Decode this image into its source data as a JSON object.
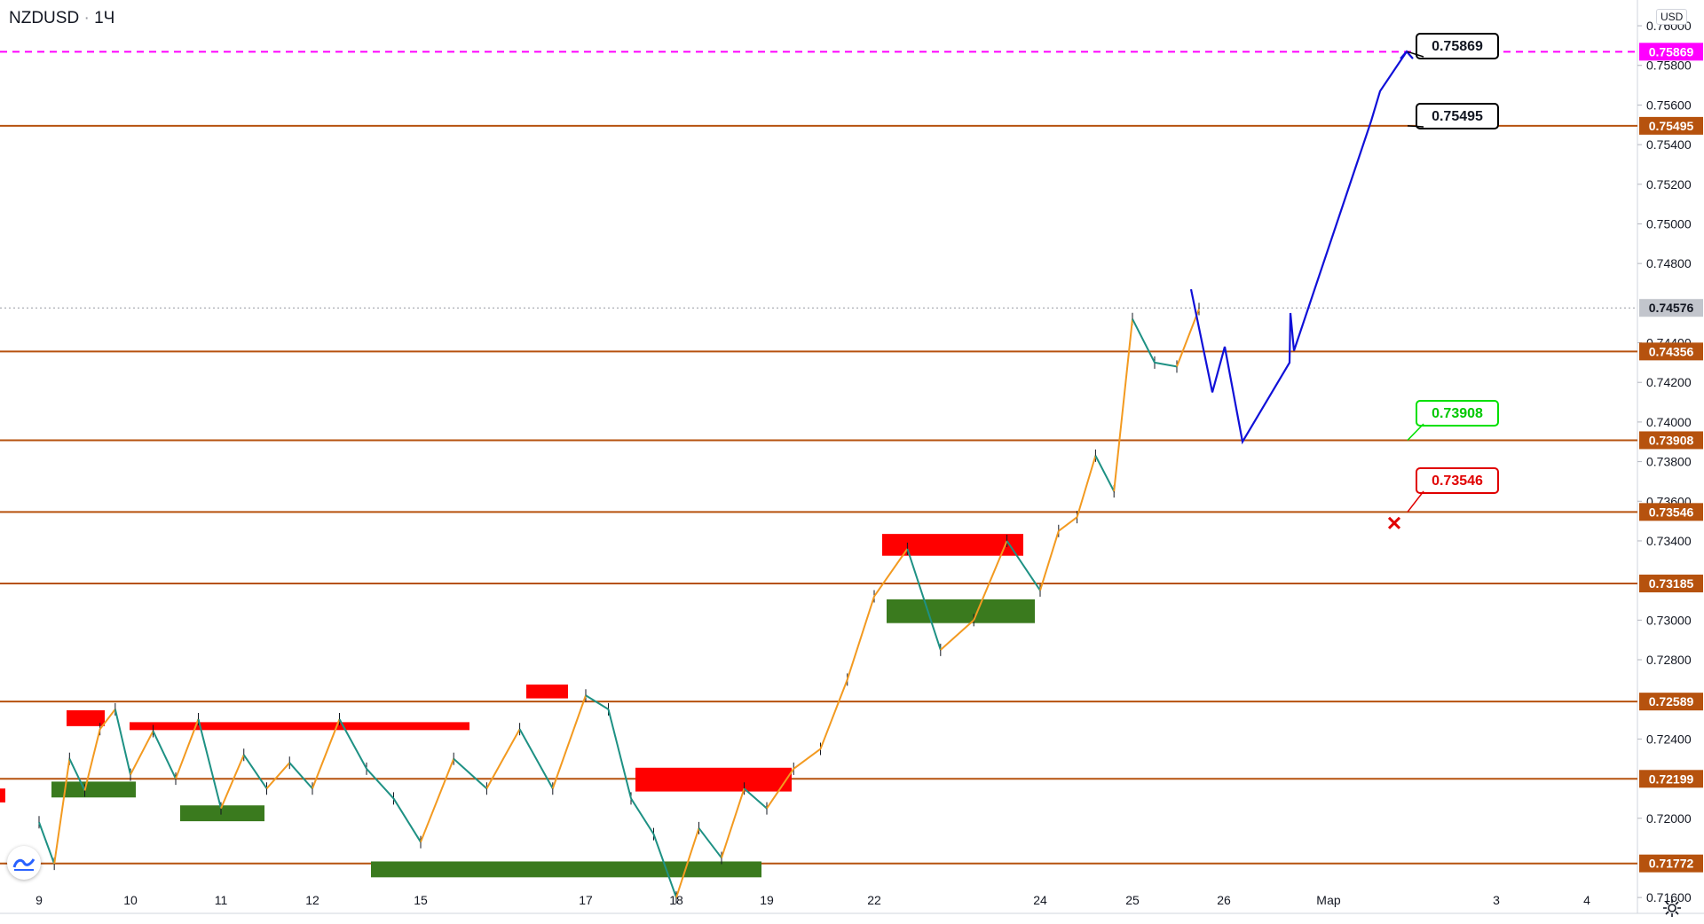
{
  "header": {
    "symbol": "NZDUSD",
    "interval": "1Ч",
    "currency": "USD"
  },
  "colors": {
    "level_line": "#b6520e",
    "target_dash": "#ff00ff",
    "projection": "#1010d8",
    "zig_up": "#f39a20",
    "zig_down": "#1e9184",
    "supply_zone": "#ff0000",
    "demand_zone": "#3a7a1e",
    "candle": "#131722"
  },
  "chart_data": {
    "type": "line",
    "title": "",
    "xlabel": "",
    "ylabel": "",
    "x_ticks": [
      "9",
      "10",
      "11",
      "12",
      "15",
      "17",
      "18",
      "19",
      "22",
      "24",
      "25",
      "26",
      "Мар",
      "3",
      "4"
    ],
    "y_ticks": [
      "0.76000",
      "0.75800",
      "0.75600",
      "0.75400",
      "0.75200",
      "0.75000",
      "0.74800",
      "0.74400",
      "0.74200",
      "0.74000",
      "0.73800",
      "0.73600",
      "0.73400",
      "0.73000",
      "0.72800",
      "0.72400",
      "0.72000",
      "0.71600"
    ],
    "ylim": [
      0.7152,
      0.7613
    ],
    "last_price": {
      "value": 0.74576,
      "label": "0.74576"
    },
    "target_price": {
      "value": 0.75869,
      "label": "0.75869"
    },
    "levels": [
      {
        "value": 0.75495,
        "label": "0.75495"
      },
      {
        "value": 0.74356,
        "label": "0.74356"
      },
      {
        "value": 0.73908,
        "label": "0.73908"
      },
      {
        "value": 0.73546,
        "label": "0.73546"
      },
      {
        "value": 0.73185,
        "label": "0.73185"
      },
      {
        "value": 0.72589,
        "label": "0.72589"
      },
      {
        "value": 0.72199,
        "label": "0.72199"
      },
      {
        "value": 0.71772,
        "label": "0.71772"
      }
    ],
    "callouts": [
      {
        "label": "0.75869",
        "style": "neutral"
      },
      {
        "label": "0.75495",
        "style": "neutral"
      },
      {
        "label": "0.73908",
        "style": "take-profit"
      },
      {
        "label": "0.73546",
        "style": "stop-loss"
      }
    ],
    "series": [
      {
        "kind": "price",
        "x": [
          "9",
          "9",
          "9",
          "9",
          "9",
          "9",
          "10",
          "10",
          "10",
          "10",
          "11",
          "11",
          "11",
          "11",
          "12",
          "12",
          "12",
          "12",
          "15",
          "15",
          "15",
          "15",
          "15",
          "17",
          "17",
          "17",
          "17",
          "18",
          "18",
          "18",
          "18",
          "19",
          "19",
          "19",
          "19",
          "22",
          "22",
          "22",
          "22",
          "22",
          "24",
          "24",
          "24",
          "24",
          "24",
          "25",
          "25",
          "25",
          "25"
        ],
        "y": [
          0.7198,
          0.7177,
          0.723,
          0.7214,
          0.7245,
          0.7255,
          0.7222,
          0.7244,
          0.722,
          0.725,
          0.7205,
          0.7232,
          0.7215,
          0.7228,
          0.7215,
          0.725,
          0.7225,
          0.721,
          0.7188,
          0.723,
          0.7215,
          0.7245,
          0.7215,
          0.7262,
          0.7255,
          0.721,
          0.7192,
          0.716,
          0.7195,
          0.718,
          0.7215,
          0.7205,
          0.7225,
          0.7235,
          0.727,
          0.7312,
          0.7336,
          0.7285,
          0.73,
          0.734,
          0.7315,
          0.7345,
          0.7352,
          0.7383,
          0.7365,
          0.7452,
          0.743,
          0.7428,
          0.7457
        ]
      },
      {
        "kind": "projection",
        "x": [
          "25",
          "26",
          "26",
          "26",
          "26",
          "Мар",
          "Мар",
          "Мар",
          "Мар",
          "Мар"
        ],
        "y": [
          0.7467,
          0.7415,
          0.7438,
          0.739,
          0.743,
          0.7455,
          0.7436,
          0.7552,
          0.7567,
          0.7587
        ]
      }
    ]
  }
}
